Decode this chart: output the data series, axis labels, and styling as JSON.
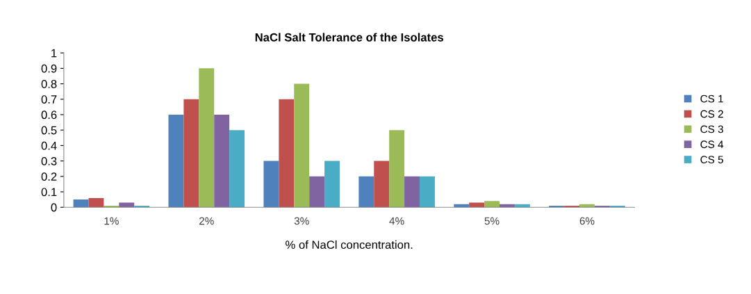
{
  "chart_data": {
    "type": "bar",
    "title": "NaCl Salt Tolerance of the Isolates",
    "xlabel": "% of NaCl concentration.",
    "categories": [
      "1%",
      "2%",
      "3%",
      "4%",
      "5%",
      "6%"
    ],
    "series": [
      {
        "name": "CS 1",
        "color": "#4f81bd",
        "values": [
          0.05,
          0.6,
          0.3,
          0.2,
          0.02,
          0.01
        ]
      },
      {
        "name": "CS 2",
        "color": "#c0504d",
        "values": [
          0.06,
          0.7,
          0.7,
          0.3,
          0.03,
          0.01
        ]
      },
      {
        "name": "CS 3",
        "color": "#9bbb59",
        "values": [
          0.01,
          0.9,
          0.8,
          0.5,
          0.04,
          0.02
        ]
      },
      {
        "name": "CS 4",
        "color": "#8064a2",
        "values": [
          0.03,
          0.6,
          0.2,
          0.2,
          0.02,
          0.01
        ]
      },
      {
        "name": "CS 5",
        "color": "#4bacc6",
        "values": [
          0.01,
          0.5,
          0.3,
          0.2,
          0.02,
          0.01
        ]
      }
    ],
    "ylim": [
      0,
      1
    ],
    "yticks": [
      0,
      0.1,
      0.2,
      0.3,
      0.4,
      0.5,
      0.6,
      0.7,
      0.8,
      0.9,
      1
    ],
    "grid": false,
    "legend": "right"
  }
}
